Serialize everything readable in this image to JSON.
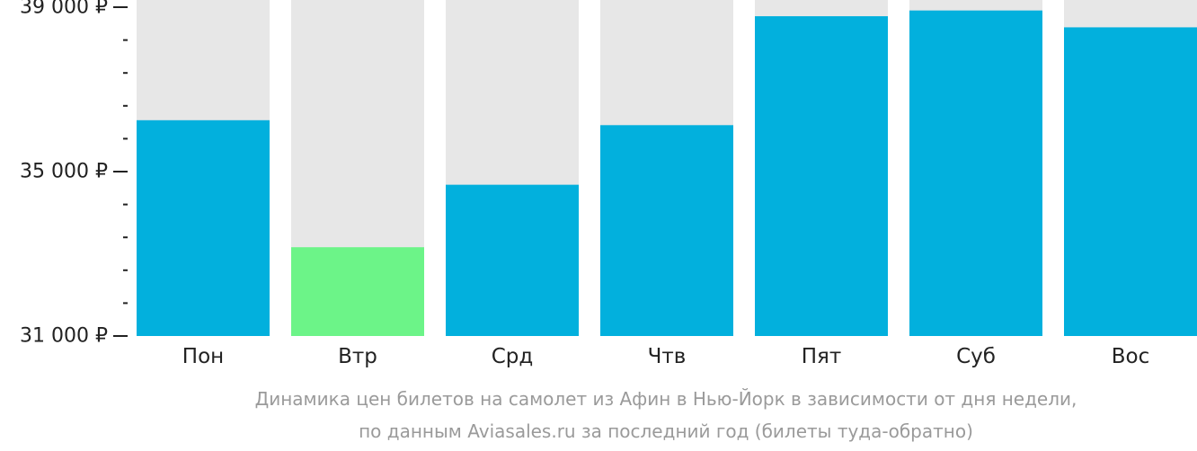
{
  "chart_data": {
    "type": "bar",
    "categories": [
      "Пон",
      "Втр",
      "Срд",
      "Чтв",
      "Пят",
      "Суб",
      "Вос"
    ],
    "values": [
      36250,
      33160,
      34680,
      36130,
      38780,
      38920,
      38510
    ],
    "y_ticks": [
      {
        "value": 39000,
        "label": "39 000 ₽"
      },
      {
        "value": 35000,
        "label": "35 000 ₽"
      },
      {
        "value": 31000,
        "label": "31 000 ₽"
      }
    ],
    "ylim": [
      31000,
      39000
    ],
    "minor_tick_step": 800,
    "grid": false,
    "bar_color": "#02b0dd",
    "lowest_bar_color": "#6cf488",
    "background_bar_color": "#e7e7e7",
    "caption_line1": "Динамика цен билетов на самолет из Афин в Нью-Йорк в зависимости от дня недели,",
    "caption_line2": "по данным Aviasales.ru за последний год (билеты туда-обратно)"
  }
}
